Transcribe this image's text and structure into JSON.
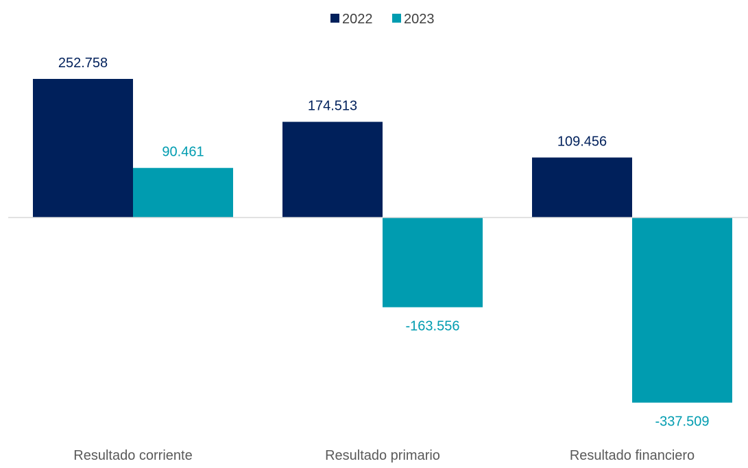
{
  "chart_data": {
    "type": "bar",
    "categories": [
      "Resultado corriente",
      "Resultado primario",
      "Resultado financiero"
    ],
    "series": [
      {
        "name": "2022",
        "color": "#00205b",
        "values": [
          252758,
          174513,
          109456
        ],
        "labels": [
          "252.758",
          "174.513",
          "109.456"
        ]
      },
      {
        "name": "2023",
        "color": "#009cb0",
        "values": [
          90461,
          -163556,
          -337509
        ],
        "labels": [
          "90.461",
          "-163.556",
          "-337.509"
        ]
      }
    ],
    "legend_position": "top-center",
    "grid": false,
    "zero_line_color": "#d9d9d9"
  }
}
